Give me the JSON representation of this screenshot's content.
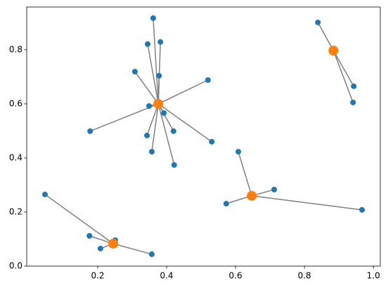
{
  "chart_data": {
    "type": "cluster-scatter",
    "series": [
      {
        "color": "#1f77b4",
        "x": [
          0.361,
          0.345,
          0.382,
          0.308,
          0.378,
          0.52,
          0.349,
          0.392,
          0.178,
          0.343,
          0.42,
          0.531,
          0.357,
          0.422,
          0.839,
          0.943,
          0.941,
          0.608,
          0.712,
          0.573,
          0.967,
          0.047,
          0.176,
          0.251,
          0.208,
          0.357
        ],
        "y": [
          0.917,
          0.821,
          0.829,
          0.719,
          0.704,
          0.688,
          0.592,
          0.566,
          0.499,
          0.483,
          0.499,
          0.46,
          0.423,
          0.374,
          0.901,
          0.665,
          0.605,
          0.423,
          0.283,
          0.231,
          0.208,
          0.265,
          0.112,
          0.096,
          0.065,
          0.044
        ],
        "cluster": [
          0,
          0,
          0,
          0,
          0,
          0,
          0,
          0,
          0,
          0,
          0,
          0,
          0,
          0,
          1,
          1,
          1,
          2,
          2,
          2,
          2,
          3,
          3,
          3,
          3,
          3
        ]
      },
      {
        "color": "#ff7f0e",
        "x": [
          0.376,
          0.884,
          0.647,
          0.245
        ],
        "y": [
          0.6,
          0.797,
          0.26,
          0.083
        ]
      }
    ],
    "line_color": "#808080",
    "xlim": [
      -0.006,
      1.02
    ],
    "ylim": [
      0,
      0.958
    ],
    "xticks": [
      0.2,
      0.4,
      0.6,
      0.8,
      {
        "value": 1,
        "label": "1.0"
      }
    ],
    "yticks": [
      {
        "value": 0,
        "label": "0.0"
      },
      0.2,
      0.4,
      0.6,
      0.8
    ],
    "grid": false
  }
}
